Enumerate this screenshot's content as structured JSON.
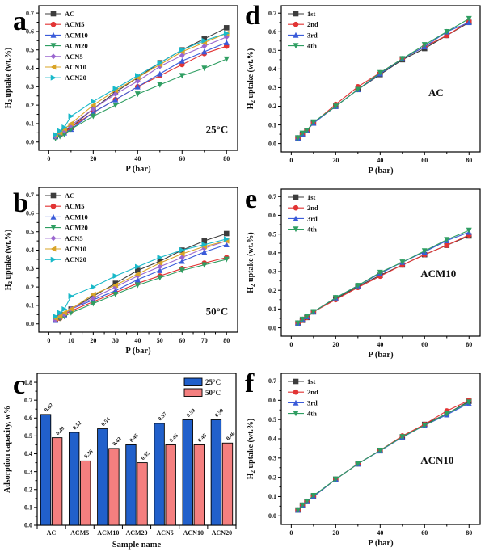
{
  "chart_data": [
    {
      "id": "a",
      "panel_label": "a",
      "type": "line",
      "annotation": "25°C",
      "annotation_xy": [
        0.84,
        0.88
      ],
      "xlabel": "P (bar)",
      "ylabel": "H_2_ uptake (wt.%)",
      "xlim": [
        -4.5,
        85
      ],
      "ylim": [
        -0.045,
        0.74
      ],
      "xticks": [
        0,
        20,
        40,
        60,
        80
      ],
      "xminor": [
        10,
        30,
        50,
        70
      ],
      "yticks": [
        0.0,
        0.1,
        0.2,
        0.3,
        0.4,
        0.5,
        0.6,
        0.7
      ],
      "yminor": [
        0.05,
        0.15,
        0.25,
        0.35,
        0.45,
        0.55,
        0.65
      ],
      "xdecimals": 0,
      "ydecimals": 1,
      "legend_pos": "top-left",
      "x": [
        3,
        5,
        7,
        10,
        20,
        30,
        40,
        50,
        60,
        70,
        80
      ],
      "series": [
        {
          "name": "AC",
          "color": "#3d3d3d",
          "marker": "square",
          "values": [
            0.03,
            0.04,
            0.06,
            0.08,
            0.18,
            0.27,
            0.35,
            0.43,
            0.5,
            0.56,
            0.62
          ]
        },
        {
          "name": "ACM5",
          "color": "#e23434",
          "marker": "circle",
          "values": [
            0.03,
            0.04,
            0.05,
            0.08,
            0.16,
            0.23,
            0.3,
            0.36,
            0.42,
            0.48,
            0.52
          ]
        },
        {
          "name": "ACM10",
          "color": "#3a5bd9",
          "marker": "triangle-up",
          "values": [
            0.03,
            0.04,
            0.05,
            0.07,
            0.16,
            0.23,
            0.3,
            0.37,
            0.44,
            0.49,
            0.54
          ]
        },
        {
          "name": "ACM20",
          "color": "#2f9e62",
          "marker": "triangle-down",
          "values": [
            0.02,
            0.03,
            0.04,
            0.07,
            0.14,
            0.2,
            0.26,
            0.31,
            0.36,
            0.4,
            0.45
          ]
        },
        {
          "name": "ACN5",
          "color": "#9a66cf",
          "marker": "diamond",
          "values": [
            0.03,
            0.05,
            0.06,
            0.09,
            0.18,
            0.26,
            0.33,
            0.41,
            0.47,
            0.52,
            0.57
          ]
        },
        {
          "name": "ACN10",
          "color": "#d9a427",
          "marker": "triangle-left",
          "values": [
            0.04,
            0.05,
            0.07,
            0.1,
            0.2,
            0.28,
            0.35,
            0.42,
            0.49,
            0.54,
            0.59
          ]
        },
        {
          "name": "ACN20",
          "color": "#19b9c9",
          "marker": "triangle-right",
          "values": [
            0.04,
            0.06,
            0.08,
            0.14,
            0.22,
            0.29,
            0.36,
            0.43,
            0.5,
            0.55,
            0.59
          ]
        }
      ]
    },
    {
      "id": "b",
      "panel_label": "b",
      "type": "line",
      "annotation": "50°C",
      "annotation_xy": [
        0.84,
        0.88
      ],
      "xlabel": "P (bar)",
      "ylabel": "H_2_ uptake (wt.%)",
      "xlim": [
        -4.5,
        85
      ],
      "ylim": [
        -0.045,
        0.74
      ],
      "xticks": [
        0,
        10,
        20,
        30,
        40,
        50,
        60,
        70,
        80
      ],
      "xminor": [
        5,
        15,
        25,
        35,
        45,
        55,
        65,
        75
      ],
      "yticks": [
        0.0,
        0.1,
        0.2,
        0.3,
        0.4,
        0.5,
        0.6,
        0.7
      ],
      "yminor": [
        0.05,
        0.15,
        0.25,
        0.35,
        0.45,
        0.55,
        0.65
      ],
      "xdecimals": 0,
      "ydecimals": 1,
      "legend_pos": "top-left",
      "x": [
        3,
        5,
        7,
        10,
        20,
        30,
        40,
        50,
        60,
        70,
        80
      ],
      "series": [
        {
          "name": "AC",
          "color": "#3d3d3d",
          "marker": "square",
          "values": [
            0.02,
            0.04,
            0.05,
            0.08,
            0.15,
            0.22,
            0.29,
            0.34,
            0.4,
            0.45,
            0.49
          ]
        },
        {
          "name": "ACM5",
          "color": "#e23434",
          "marker": "circle",
          "values": [
            0.02,
            0.03,
            0.05,
            0.07,
            0.12,
            0.17,
            0.22,
            0.26,
            0.3,
            0.33,
            0.36
          ]
        },
        {
          "name": "ACM10",
          "color": "#3a5bd9",
          "marker": "triangle-up",
          "values": [
            0.02,
            0.04,
            0.05,
            0.08,
            0.13,
            0.18,
            0.24,
            0.29,
            0.34,
            0.39,
            0.43
          ]
        },
        {
          "name": "ACM20",
          "color": "#2f9e62",
          "marker": "triangle-down",
          "values": [
            0.02,
            0.03,
            0.04,
            0.06,
            0.11,
            0.16,
            0.21,
            0.25,
            0.29,
            0.32,
            0.35
          ]
        },
        {
          "name": "ACN5",
          "color": "#9a66cf",
          "marker": "diamond",
          "values": [
            0.02,
            0.04,
            0.05,
            0.08,
            0.14,
            0.2,
            0.26,
            0.31,
            0.36,
            0.41,
            0.45
          ]
        },
        {
          "name": "ACN10",
          "color": "#d9a427",
          "marker": "triangle-left",
          "values": [
            0.03,
            0.04,
            0.06,
            0.08,
            0.16,
            0.21,
            0.27,
            0.33,
            0.38,
            0.42,
            0.45
          ]
        },
        {
          "name": "ACN20",
          "color": "#19b9c9",
          "marker": "triangle-right",
          "values": [
            0.04,
            0.06,
            0.08,
            0.15,
            0.2,
            0.26,
            0.31,
            0.36,
            0.4,
            0.43,
            0.46
          ]
        }
      ]
    },
    {
      "id": "c",
      "panel_label": "c",
      "type": "bar",
      "xlabel": "Sample name",
      "ylabel": "Adsorption capacity, w%",
      "ylim": [
        0,
        0.85
      ],
      "yticks": [
        0.0,
        0.1,
        0.2,
        0.3,
        0.4,
        0.5,
        0.6,
        0.7,
        0.8
      ],
      "yminor": [
        0.05,
        0.15,
        0.25,
        0.35,
        0.45,
        0.55,
        0.65,
        0.75
      ],
      "ydecimals": 1,
      "bar_labels": true,
      "legend_pos": "top-right",
      "categories": [
        "AC",
        "ACM5",
        "ACM10",
        "ACM20",
        "ACN5",
        "ACN10",
        "ACN20"
      ],
      "series": [
        {
          "name": "25°C",
          "color": "#2160cb",
          "values": [
            0.62,
            0.52,
            0.54,
            0.45,
            0.57,
            0.59,
            0.59
          ]
        },
        {
          "name": "50°C",
          "color": "#f47f7f",
          "values": [
            0.49,
            0.36,
            0.43,
            0.35,
            0.45,
            0.45,
            0.46
          ]
        }
      ]
    },
    {
      "id": "d",
      "panel_label": "d",
      "type": "line",
      "annotation": "AC",
      "annotation_xy": [
        0.74,
        0.62
      ],
      "xlabel": "P (bar)",
      "ylabel": "H_2_ uptake (wt.%)",
      "xlim": [
        -4.5,
        85
      ],
      "ylim": [
        -0.045,
        0.74
      ],
      "xticks": [
        0,
        20,
        40,
        60,
        80
      ],
      "xminor": [
        10,
        30,
        50,
        70
      ],
      "yticks": [
        0.0,
        0.1,
        0.2,
        0.3,
        0.4,
        0.5,
        0.6,
        0.7
      ],
      "yminor": [
        0.05,
        0.15,
        0.25,
        0.35,
        0.45,
        0.55,
        0.65
      ],
      "xdecimals": 0,
      "ydecimals": 1,
      "legend_pos": "top-left",
      "x": [
        3,
        5,
        7,
        10,
        20,
        30,
        40,
        50,
        60,
        70,
        80
      ],
      "series": [
        {
          "name": "1st",
          "color": "#3d3d3d",
          "marker": "square",
          "values": [
            0.03,
            0.05,
            0.07,
            0.11,
            0.2,
            0.29,
            0.37,
            0.45,
            0.51,
            0.58,
            0.65
          ]
        },
        {
          "name": "2nd",
          "color": "#e23434",
          "marker": "circle",
          "values": [
            0.03,
            0.05,
            0.07,
            0.11,
            0.21,
            0.305,
            0.38,
            0.455,
            0.52,
            0.58,
            0.655
          ]
        },
        {
          "name": "3rd",
          "color": "#3a5bd9",
          "marker": "triangle-up",
          "values": [
            0.03,
            0.05,
            0.07,
            0.11,
            0.2,
            0.29,
            0.375,
            0.455,
            0.52,
            0.6,
            0.65
          ]
        },
        {
          "name": "4th",
          "color": "#2f9e62",
          "marker": "triangle-down",
          "values": [
            0.03,
            0.055,
            0.07,
            0.115,
            0.2,
            0.29,
            0.38,
            0.455,
            0.53,
            0.6,
            0.67
          ]
        }
      ]
    },
    {
      "id": "e",
      "panel_label": "e",
      "type": "line",
      "annotation": "ACM10",
      "annotation_xy": [
        0.7,
        0.6
      ],
      "xlabel": "P (bar)",
      "ylabel": "H_2_ uptake (wt.%)",
      "xlim": [
        -4.5,
        85
      ],
      "ylim": [
        -0.045,
        0.74
      ],
      "xticks": [
        0,
        20,
        40,
        60,
        80
      ],
      "xminor": [
        10,
        30,
        50,
        70
      ],
      "yticks": [
        0.0,
        0.1,
        0.2,
        0.3,
        0.4,
        0.5,
        0.6,
        0.7
      ],
      "yminor": [
        0.05,
        0.15,
        0.25,
        0.35,
        0.45,
        0.55,
        0.65
      ],
      "xdecimals": 0,
      "ydecimals": 1,
      "legend_pos": "top-left",
      "x": [
        3,
        5,
        7,
        10,
        20,
        30,
        40,
        50,
        60,
        70,
        80
      ],
      "series": [
        {
          "name": "1st",
          "color": "#3d3d3d",
          "marker": "square",
          "values": [
            0.025,
            0.04,
            0.055,
            0.085,
            0.155,
            0.22,
            0.28,
            0.335,
            0.39,
            0.44,
            0.49
          ]
        },
        {
          "name": "2nd",
          "color": "#e23434",
          "marker": "circle",
          "values": [
            0.025,
            0.04,
            0.055,
            0.085,
            0.15,
            0.215,
            0.275,
            0.335,
            0.39,
            0.44,
            0.495
          ]
        },
        {
          "name": "3rd",
          "color": "#3a5bd9",
          "marker": "triangle-up",
          "values": [
            0.025,
            0.045,
            0.06,
            0.085,
            0.16,
            0.225,
            0.29,
            0.35,
            0.405,
            0.465,
            0.51
          ]
        },
        {
          "name": "4th",
          "color": "#2f9e62",
          "marker": "triangle-down",
          "values": [
            0.025,
            0.045,
            0.06,
            0.085,
            0.16,
            0.225,
            0.295,
            0.35,
            0.41,
            0.47,
            0.52
          ]
        }
      ]
    },
    {
      "id": "f",
      "panel_label": "f",
      "type": "line",
      "annotation": "ACN10",
      "annotation_xy": [
        0.7,
        0.6
      ],
      "xlabel": "P (bar)",
      "ylabel": "H_2_ uptake (wt.%)",
      "xlim": [
        -4.5,
        85
      ],
      "ylim": [
        -0.045,
        0.74
      ],
      "xticks": [
        0,
        20,
        40,
        60,
        80
      ],
      "xminor": [
        10,
        30,
        50,
        70
      ],
      "yticks": [
        0.0,
        0.1,
        0.2,
        0.3,
        0.4,
        0.5,
        0.6,
        0.7
      ],
      "yminor": [
        0.05,
        0.15,
        0.25,
        0.35,
        0.45,
        0.55,
        0.65
      ],
      "xdecimals": 0,
      "ydecimals": 1,
      "legend_pos": "top-left",
      "x": [
        3,
        5,
        7,
        10,
        20,
        30,
        40,
        50,
        60,
        70,
        80
      ],
      "series": [
        {
          "name": "1st",
          "color": "#3d3d3d",
          "marker": "square",
          "values": [
            0.03,
            0.055,
            0.075,
            0.1,
            0.19,
            0.27,
            0.34,
            0.41,
            0.475,
            0.53,
            0.595
          ]
        },
        {
          "name": "2nd",
          "color": "#e23434",
          "marker": "circle",
          "values": [
            0.03,
            0.055,
            0.075,
            0.1,
            0.19,
            0.27,
            0.34,
            0.415,
            0.475,
            0.545,
            0.6
          ]
        },
        {
          "name": "3rd",
          "color": "#3a5bd9",
          "marker": "triangle-up",
          "values": [
            0.03,
            0.055,
            0.075,
            0.1,
            0.19,
            0.27,
            0.338,
            0.408,
            0.47,
            0.525,
            0.585
          ]
        },
        {
          "name": "4th",
          "color": "#2f9e62",
          "marker": "triangle-down",
          "values": [
            0.03,
            0.055,
            0.075,
            0.105,
            0.19,
            0.27,
            0.34,
            0.41,
            0.47,
            0.53,
            0.59
          ]
        }
      ]
    }
  ]
}
